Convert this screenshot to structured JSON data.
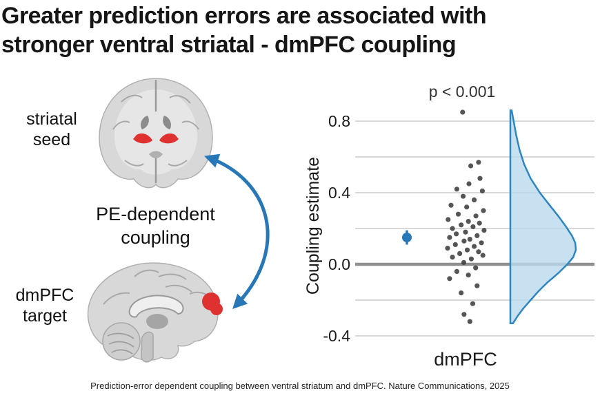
{
  "title": {
    "line1": "Greater prediction errors are associated with",
    "line2": "stronger ventral striatal - dmPFC coupling"
  },
  "left_panel": {
    "seed_label": "striatal seed",
    "coupling_label": "PE-dependent coupling",
    "target_label": "dmPFC target"
  },
  "caption": "Prediction-error dependent coupling between ventral striatum and dmPFC. Nature Communications, 2025",
  "colors": {
    "accent_blue": "#2878b8",
    "violin_fill": "#b9d9ee",
    "violin_stroke": "#2e86c1",
    "highlight_red": "#e03131",
    "scatter_gray": "#3d3d3d",
    "zero_line_gray": "#8f8f8f",
    "gridline_gray": "#cccccc"
  },
  "chart_data": {
    "type": "scatter",
    "subtype": "raincloud: mean with CI, jittered subject points, half-violin density",
    "x_category": "dmPFC",
    "ylabel": "Coupling estimate",
    "annotation": "p < 0.001",
    "ylim": [
      -0.45,
      0.85
    ],
    "yticks": [
      0.8,
      0.4,
      0.0,
      -0.4
    ],
    "gridlines": [
      0.8,
      0.6,
      0.4,
      0.2,
      -0.2,
      -0.4,
      0.0
    ],
    "zero_line": 0.0,
    "mean": 0.15,
    "mean_ci": [
      0.11,
      0.19
    ],
    "points": [
      [
        -0.1,
        0.85
      ],
      [
        0.45,
        0.57
      ],
      [
        0.18,
        0.55
      ],
      [
        0.5,
        0.48
      ],
      [
        0.12,
        0.45
      ],
      [
        -0.3,
        0.42
      ],
      [
        0.58,
        0.41
      ],
      [
        -0.08,
        0.38
      ],
      [
        0.3,
        0.36
      ],
      [
        -0.5,
        0.33
      ],
      [
        0.04,
        0.32
      ],
      [
        0.62,
        0.3
      ],
      [
        -0.25,
        0.28
      ],
      [
        0.36,
        0.27
      ],
      [
        -0.6,
        0.25
      ],
      [
        0.1,
        0.24
      ],
      [
        0.48,
        0.23
      ],
      [
        -0.15,
        0.22
      ],
      [
        0.26,
        0.21
      ],
      [
        -0.45,
        0.2
      ],
      [
        0.64,
        0.19
      ],
      [
        0.0,
        0.18
      ],
      [
        -0.32,
        0.17
      ],
      [
        0.4,
        0.16
      ],
      [
        -0.55,
        0.15
      ],
      [
        0.15,
        0.14
      ],
      [
        -0.05,
        0.13
      ],
      [
        0.55,
        0.12
      ],
      [
        -0.35,
        0.11
      ],
      [
        0.3,
        0.1
      ],
      [
        -0.62,
        0.09
      ],
      [
        0.06,
        0.08
      ],
      [
        0.45,
        0.07
      ],
      [
        -0.2,
        0.06
      ],
      [
        0.6,
        0.05
      ],
      [
        -0.45,
        0.04
      ],
      [
        0.2,
        0.03
      ],
      [
        -0.06,
        0.01
      ],
      [
        0.35,
        -0.02
      ],
      [
        -0.3,
        -0.04
      ],
      [
        0.1,
        -0.06
      ],
      [
        -0.55,
        -0.08
      ],
      [
        0.4,
        -0.12
      ],
      [
        -0.15,
        -0.16
      ],
      [
        0.25,
        -0.22
      ],
      [
        -0.05,
        -0.28
      ],
      [
        0.15,
        -0.32
      ]
    ],
    "violin_profile": [
      [
        0.86,
        0.02
      ],
      [
        0.8,
        0.05
      ],
      [
        0.72,
        0.09
      ],
      [
        0.64,
        0.14
      ],
      [
        0.56,
        0.21
      ],
      [
        0.48,
        0.31
      ],
      [
        0.4,
        0.45
      ],
      [
        0.33,
        0.6
      ],
      [
        0.27,
        0.73
      ],
      [
        0.21,
        0.85
      ],
      [
        0.16,
        0.94
      ],
      [
        0.12,
        0.99
      ],
      [
        0.08,
        1.0
      ],
      [
        0.04,
        0.96
      ],
      [
        0.0,
        0.87
      ],
      [
        -0.05,
        0.73
      ],
      [
        -0.1,
        0.57
      ],
      [
        -0.15,
        0.43
      ],
      [
        -0.2,
        0.31
      ],
      [
        -0.25,
        0.19
      ],
      [
        -0.29,
        0.11
      ],
      [
        -0.33,
        0.04
      ]
    ]
  }
}
